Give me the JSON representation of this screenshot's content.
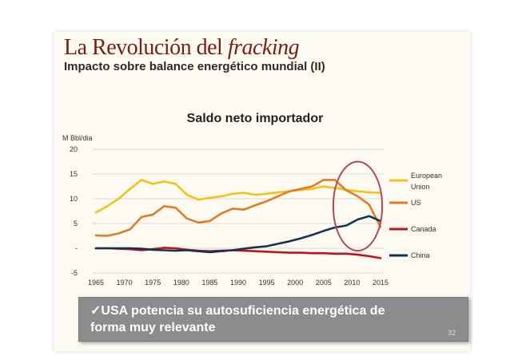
{
  "slide": {
    "title_main": "La Revolución del ",
    "title_italic": "fracking",
    "subtitle": "Impacto sobre balance energético mundial (II)",
    "callout_check": "✓",
    "callout_text_1": "USA potencia su autosuficiencia energética de",
    "callout_text_2": "forma muy relevante",
    "page_number": "32"
  },
  "chart_data": {
    "type": "line",
    "title": "Saldo neto importador",
    "ylabel": "M Bbl/dia",
    "xlabel": "",
    "x": [
      1965,
      1967,
      1969,
      1971,
      1973,
      1975,
      1977,
      1979,
      1981,
      1983,
      1985,
      1987,
      1989,
      1991,
      1993,
      1995,
      1997,
      1999,
      2001,
      2003,
      2005,
      2007,
      2009,
      2011,
      2013,
      2015
    ],
    "xticks": [
      1965,
      1970,
      1975,
      1980,
      1985,
      1990,
      1995,
      2000,
      2005,
      2010,
      2015
    ],
    "ytick_values": [
      -5,
      0,
      5,
      10,
      15,
      20
    ],
    "ytick_labels": [
      "-5",
      "-",
      "5",
      "10",
      "15",
      "20"
    ],
    "ylim": [
      -5,
      20
    ],
    "xlim": [
      1965,
      2015
    ],
    "grid": "horizontal",
    "legend": "right",
    "series": [
      {
        "name": "European Union",
        "name_line1": "European",
        "name_line2": "Union",
        "color": "#f2c218",
        "values": [
          7.2,
          8.5,
          10.0,
          12.0,
          13.8,
          13.0,
          13.5,
          13.0,
          10.8,
          9.8,
          10.2,
          10.5,
          11.0,
          11.2,
          10.8,
          11.0,
          11.3,
          11.5,
          11.8,
          12.0,
          12.5,
          12.2,
          11.8,
          11.5,
          11.3,
          11.2
        ]
      },
      {
        "name": "US",
        "color": "#e07d24",
        "values": [
          2.6,
          2.5,
          3.0,
          3.8,
          6.3,
          6.8,
          8.5,
          8.2,
          6.0,
          5.2,
          5.5,
          7.0,
          8.0,
          7.8,
          8.7,
          9.5,
          10.5,
          11.5,
          12.0,
          12.5,
          13.8,
          13.8,
          11.7,
          10.5,
          8.8,
          4.3
        ]
      },
      {
        "name": "Canada",
        "color": "#c0141c",
        "values": [
          0.0,
          0.0,
          -0.1,
          -0.2,
          -0.4,
          -0.2,
          0.1,
          0.0,
          -0.3,
          -0.5,
          -0.6,
          -0.5,
          -0.4,
          -0.5,
          -0.6,
          -0.7,
          -0.8,
          -0.9,
          -0.9,
          -1.0,
          -1.0,
          -1.1,
          -1.1,
          -1.3,
          -1.6,
          -2.0
        ]
      },
      {
        "name": "China",
        "color": "#15324f",
        "values": [
          0.0,
          0.0,
          0.0,
          0.0,
          -0.1,
          -0.3,
          -0.4,
          -0.5,
          -0.4,
          -0.6,
          -0.8,
          -0.6,
          -0.4,
          -0.1,
          0.2,
          0.4,
          0.9,
          1.4,
          2.0,
          2.7,
          3.5,
          4.2,
          4.6,
          5.8,
          6.5,
          5.5
        ]
      }
    ],
    "annotation": {
      "type": "ellipse",
      "x_center": 2011,
      "y_center": 8.5,
      "x_radius": 4.3,
      "y_radius": 9.0,
      "color": "#b2495a"
    }
  }
}
